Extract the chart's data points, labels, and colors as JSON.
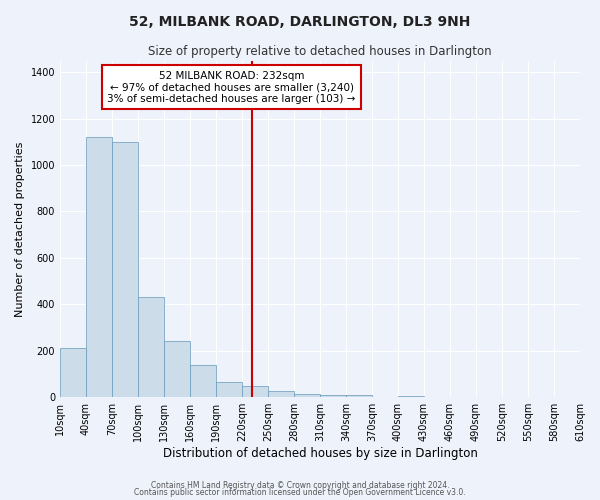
{
  "title": "52, MILBANK ROAD, DARLINGTON, DL3 9NH",
  "subtitle": "Size of property relative to detached houses in Darlington",
  "xlabel": "Distribution of detached houses by size in Darlington",
  "ylabel": "Number of detached properties",
  "bar_color": "#ccdce8",
  "bar_edge_color": "#6699bb",
  "background_color": "#eef2fa",
  "grid_color": "#ffffff",
  "vline_x": 232,
  "vline_color": "#cc0000",
  "annotation_title": "52 MILBANK ROAD: 232sqm",
  "annotation_line1": "← 97% of detached houses are smaller (3,240)",
  "annotation_line2": "3% of semi-detached houses are larger (103) →",
  "annotation_box_color": "#ffffff",
  "annotation_box_edge": "#cc0000",
  "bins": [
    10,
    40,
    70,
    100,
    130,
    160,
    190,
    220,
    250,
    280,
    310,
    340,
    370,
    400,
    430,
    460,
    490,
    520,
    550,
    580,
    610
  ],
  "counts": [
    210,
    1120,
    1100,
    430,
    240,
    140,
    65,
    50,
    25,
    15,
    10,
    8,
    0,
    5,
    0,
    0,
    0,
    0,
    0,
    0
  ],
  "ylim": [
    0,
    1450
  ],
  "yticks": [
    0,
    200,
    400,
    600,
    800,
    1000,
    1200,
    1400
  ],
  "footer1": "Contains HM Land Registry data © Crown copyright and database right 2024.",
  "footer2": "Contains public sector information licensed under the Open Government Licence v3.0."
}
